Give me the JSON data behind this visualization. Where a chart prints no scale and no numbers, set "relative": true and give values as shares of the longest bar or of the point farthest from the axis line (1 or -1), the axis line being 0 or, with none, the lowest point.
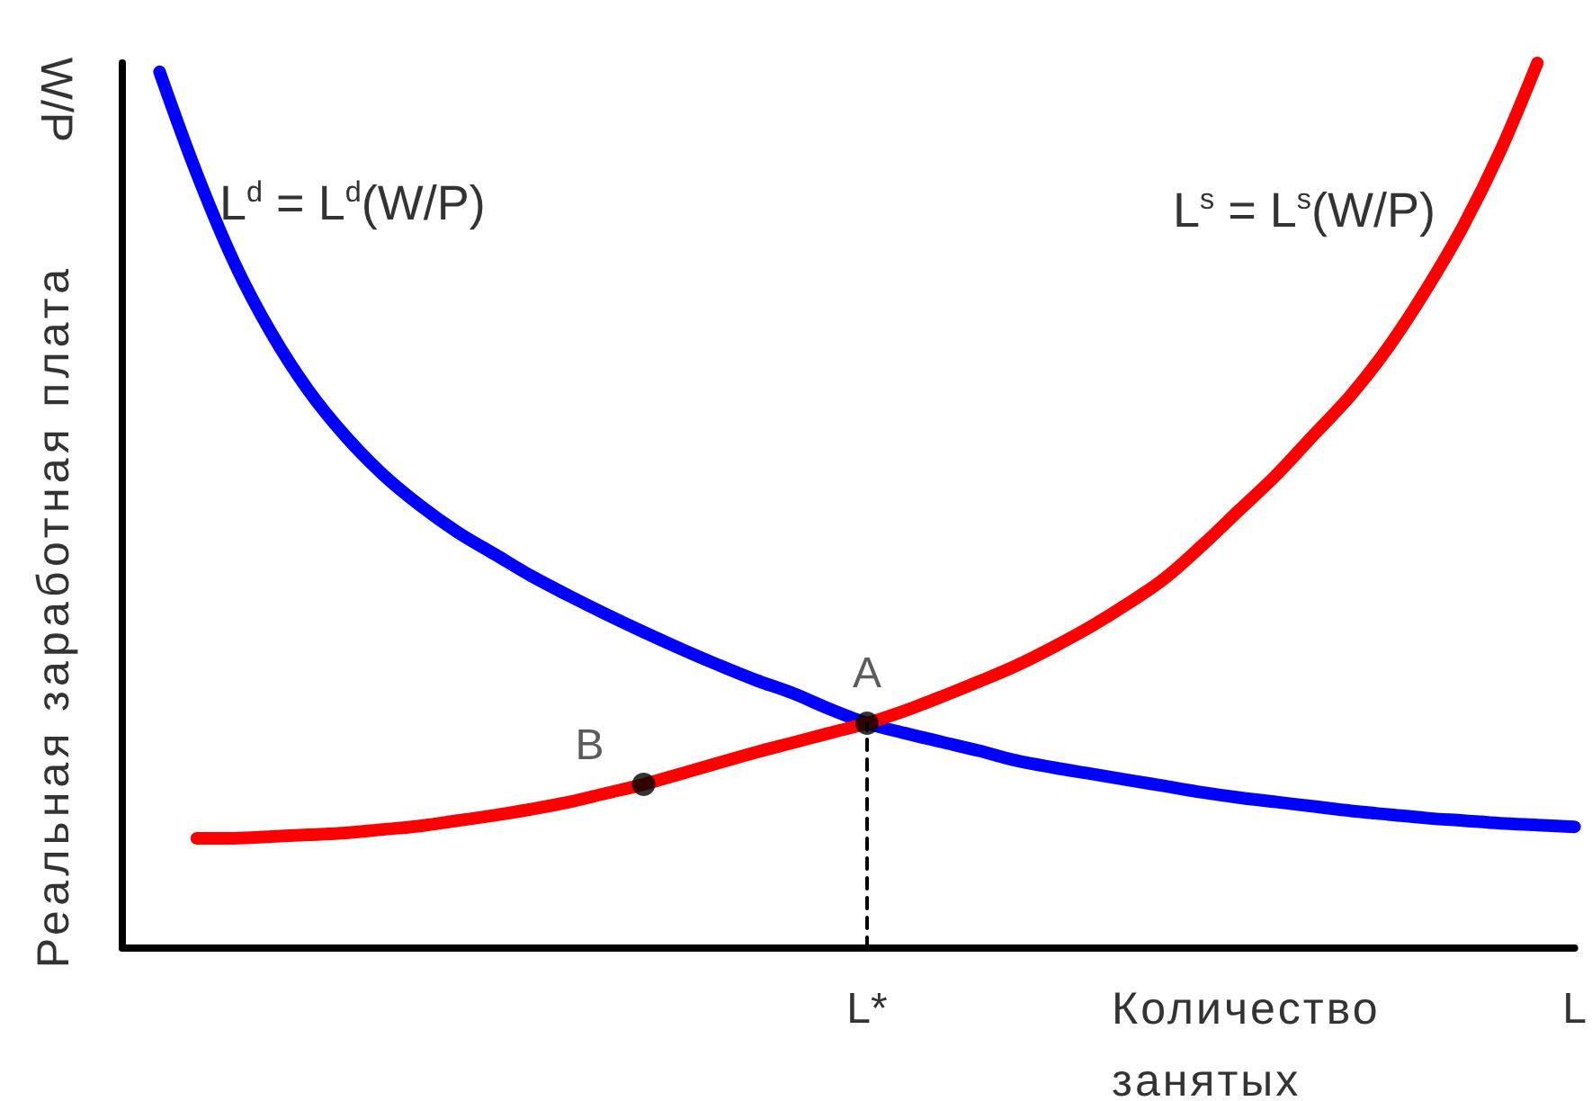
{
  "chart_data": {
    "type": "line",
    "relative": true,
    "marker": "none",
    "ylabel": "Реальная заработная плата",
    "xlabel": "Количество занятых",
    "annotations": [
      "W/P"
    ],
    "categories": [
      null,
      null,
      null,
      null,
      null,
      null,
      null,
      null,
      null,
      null,
      null,
      null,
      null,
      null,
      null,
      null,
      null,
      null,
      null,
      null,
      "L*",
      null,
      null,
      null,
      null,
      null,
      null,
      null,
      null,
      null,
      null,
      null,
      null,
      null,
      null,
      null,
      null,
      null,
      null,
      "L"
    ],
    "series": [
      {
        "name": "L$^{d}$ = L$^{d}$(W/P)",
        "color": "#0000ff",
        "values": [
          null,
          0.99,
          0.875,
          0.775,
          0.695,
          0.63,
          0.578,
          0.535,
          0.5,
          0.47,
          0.445,
          0.42,
          0.398,
          0.377,
          0.357,
          0.338,
          0.32,
          0.303,
          0.288,
          0.27,
          0.254,
          0.243,
          0.233,
          0.223,
          0.212,
          0.204,
          0.197,
          0.19,
          0.183,
          0.176,
          0.17,
          0.165,
          0.16,
          0.155,
          0.151,
          0.147,
          0.144,
          0.141,
          0.139,
          0.137
        ]
      },
      {
        "name": "L$^{s}$ = L$^{s}$(W/P)",
        "color": "#ff0000",
        "values": [
          null,
          null,
          0.124,
          0.124,
          0.126,
          0.128,
          0.13,
          0.134,
          0.138,
          0.144,
          0.15,
          0.157,
          0.165,
          0.175,
          0.185,
          0.197,
          0.209,
          0.221,
          0.232,
          0.243,
          0.254,
          0.268,
          0.284,
          0.301,
          0.319,
          0.34,
          0.363,
          0.389,
          0.418,
          0.455,
          0.495,
          0.535,
          0.58,
          0.625,
          0.679,
          0.743,
          0.815,
          0.9,
          1,
          null
        ]
      },
      {
        "type": "line",
        "color": "#000000",
        "line_style": "dashed",
        "x": [
          "L*",
          "L*"
        ],
        "values": [
          0,
          0.254
        ]
      },
      {
        "type": "scatter",
        "name": "A",
        "color": "#000000",
        "marker": "circle",
        "x": [
          "L*"
        ],
        "values": [
          0.254
        ]
      },
      {
        "type": "scatter",
        "name": "B",
        "color": "#000000",
        "marker": "circle",
        "values": [
          null,
          null,
          null,
          null,
          null,
          null,
          null,
          null,
          null,
          null,
          null,
          null,
          null,
          null,
          0.185,
          null,
          null,
          null,
          null,
          null,
          null,
          null,
          null,
          null,
          null,
          null,
          null,
          null,
          null,
          null,
          null,
          null,
          null,
          null,
          null,
          null,
          null,
          null,
          null,
          null
        ]
      }
    ]
  }
}
